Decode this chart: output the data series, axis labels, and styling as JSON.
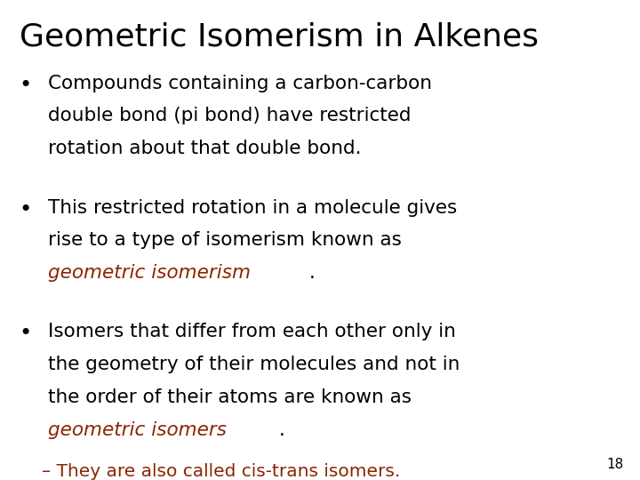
{
  "title": "Geometric Isomerism in Alkenes",
  "title_fontsize": 26,
  "title_color": "#000000",
  "background_color": "#ffffff",
  "slide_number": "18",
  "bullet_fontsize": 15.5,
  "sub_fontsize": 14.5,
  "black": "#000000",
  "red": "#8B2500",
  "bullet1_lines": [
    "Compounds containing a carbon-carbon",
    "double bond (pi bond) have restricted",
    "rotation about that double bond."
  ],
  "bullet2_lines": [
    "This restricted rotation in a molecule gives",
    "rise to a type of isomerism known as"
  ],
  "bullet2_last": [
    {
      "text": "geometric isomerism",
      "color": "#8B2500",
      "style": "italic"
    },
    {
      "text": ".",
      "color": "#000000",
      "style": "normal"
    }
  ],
  "bullet3_lines": [
    "Isomers that differ from each other only in",
    "the geometry of their molecules and not in",
    "the order of their atoms are known as"
  ],
  "bullet3_last": [
    {
      "text": "geometric isomers",
      "color": "#8B2500",
      "style": "italic"
    },
    {
      "text": ".",
      "color": "#000000",
      "style": "normal"
    }
  ],
  "sub_bullet": "– They are also called cis-trans isomers."
}
